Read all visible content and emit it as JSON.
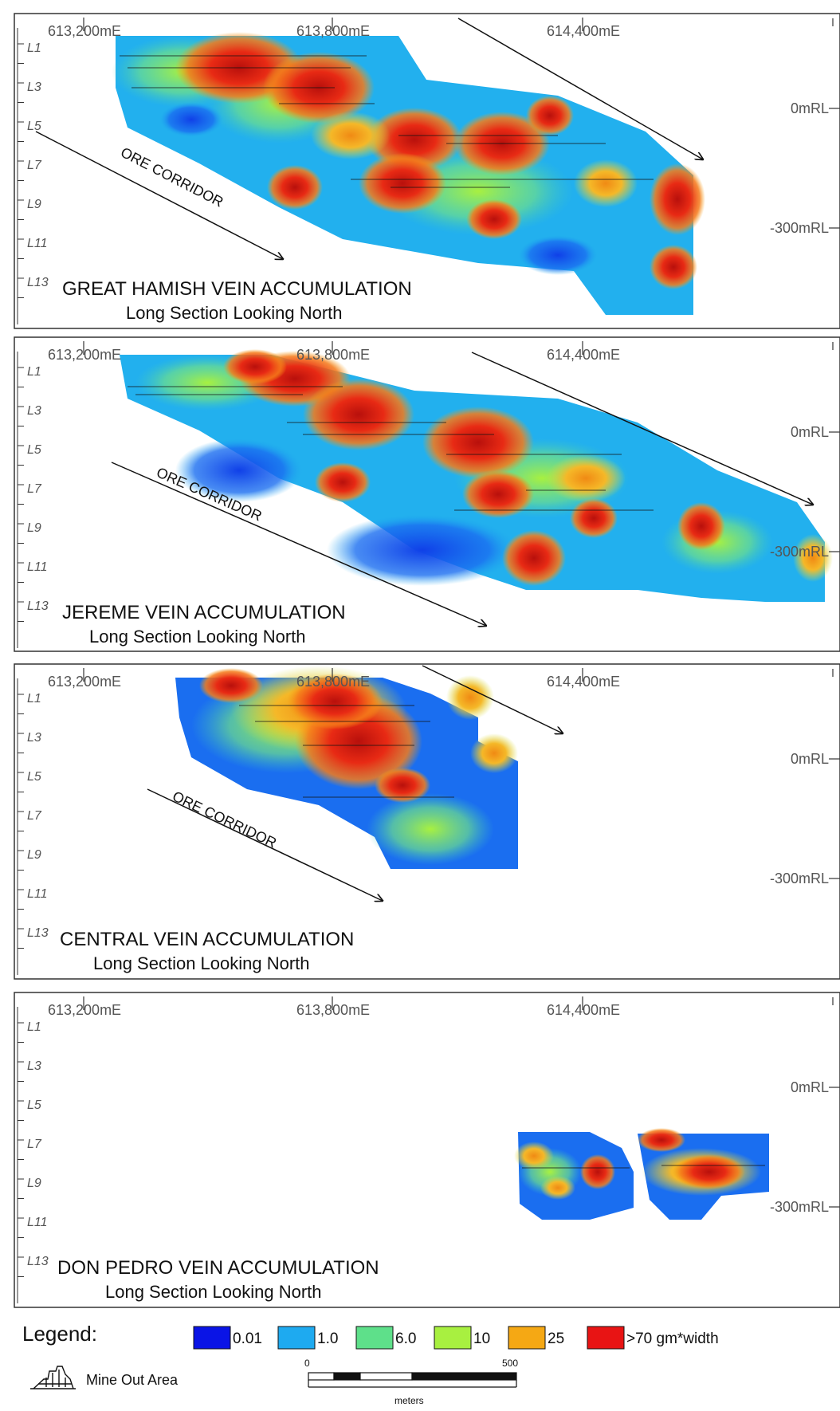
{
  "panels": [
    {
      "title": "GREAT HAMISH VEIN ACCUMULATION",
      "subtitle": "Long Section Looking North",
      "corridor_label": "ORE CORRIDOR"
    },
    {
      "title": "JEREME VEIN ACCUMULATION",
      "subtitle": "Long Section Looking North",
      "corridor_label": "ORE CORRIDOR"
    },
    {
      "title": "CENTRAL VEIN ACCUMULATION",
      "subtitle": "Long Section Looking North",
      "corridor_label": "ORE CORRIDOR"
    },
    {
      "title": "DON PEDRO VEIN ACCUMULATION",
      "subtitle": "Long Section Looking North",
      "corridor_label": ""
    }
  ],
  "eastings": [
    "613,200mE",
    "613,800mE",
    "614,400mE"
  ],
  "elevations": [
    "0mRL",
    "-300mRL"
  ],
  "levels": [
    "L1",
    "L3",
    "L5",
    "L7",
    "L9",
    "L11",
    "L13"
  ],
  "legend": {
    "title": "Legend:",
    "items": [
      {
        "label": "0.01",
        "color": "#0a14e6"
      },
      {
        "label": "1.0",
        "color": "#1eaaf0"
      },
      {
        "label": "6.0",
        "color": "#5ee08a"
      },
      {
        "label": "10",
        "color": "#a8f040"
      },
      {
        "label": "25",
        "color": "#f5a814"
      },
      {
        "label": ">70 gm*width",
        "color": "#e81414"
      }
    ],
    "mine_out_label": "Mine Out Area",
    "scale_start": "0",
    "scale_end": "500",
    "scale_unit": "meters"
  }
}
